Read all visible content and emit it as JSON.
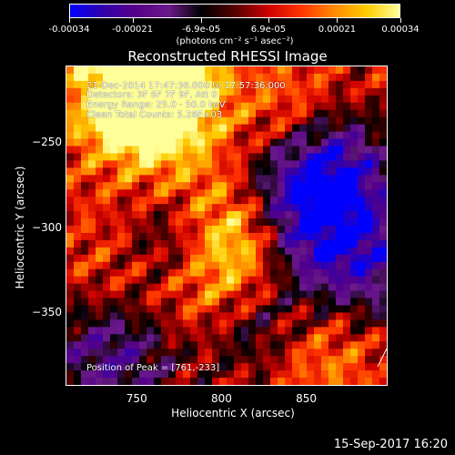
{
  "colorbar": {
    "tick_labels": [
      "-0.00034",
      "-0.00021",
      "-6.9e-05",
      "6.9e-05",
      "0.00021",
      "0.00034"
    ],
    "tick_values": [
      -0.00034,
      -0.00021,
      -6.9e-05,
      6.9e-05,
      0.00021,
      0.00034
    ],
    "range": [
      -0.00034,
      0.00034
    ],
    "units": "(photons cm⁻² s⁻¹ asec⁻²)"
  },
  "chart_data": {
    "type": "heatmap",
    "title": "Reconstructed RHESSI Image",
    "xlabel": "Heliocentric X (arcsec)",
    "ylabel": "Heliocentric Y (arcsec)",
    "xlim": [
      708,
      898
    ],
    "ylim": [
      -393,
      -205
    ],
    "x_ticks": [
      750,
      800,
      850
    ],
    "y_ticks": [
      -250,
      -300,
      -350
    ],
    "x_tick_labels": [
      "750",
      "800",
      "850"
    ],
    "y_tick_labels": [
      "−250",
      "−300",
      "−350"
    ],
    "colormap": [
      "#0000ff",
      "#3300aa",
      "#550088",
      "#6a1a8a",
      "#000000",
      "#550000",
      "#cc0000",
      "#ff3300",
      "#ff8800",
      "#ffcc00",
      "#ffff99"
    ],
    "annotations": [
      "21-Dec-2014 17:47:36.000 to 17:57:36.000",
      "Detectors: 3F 6F 7F 9F, Att 0",
      "Energy Range: 25.0 - 50.0 keV",
      "Clean    Total Counts: 5.28E+03",
      "Position of Peak = [761,-233]"
    ],
    "peak": [
      761,
      -233
    ]
  },
  "footer": {
    "timestamp": "15-Sep-2017 16:20"
  }
}
